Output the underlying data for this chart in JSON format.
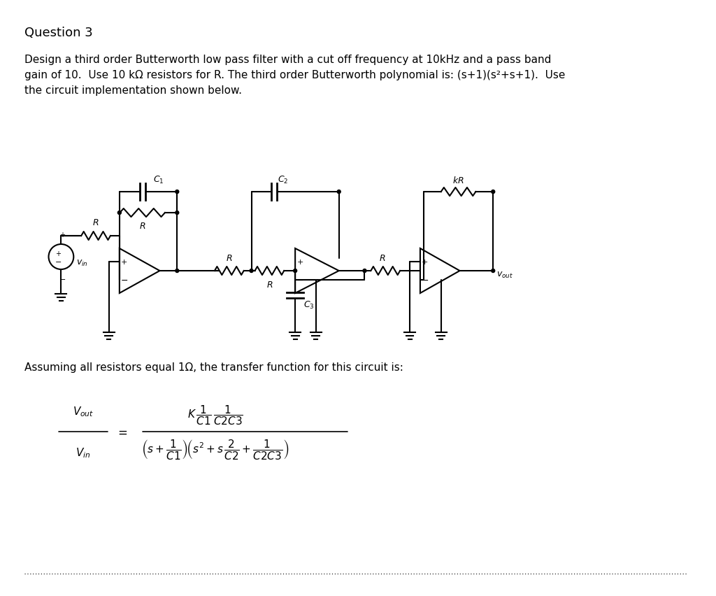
{
  "title": "Question 3",
  "paragraph": "Design a third order Butterworth low pass filter with a cut off frequency at 10kHz and a pass band\ngain of 10.  Use 10 kΩ resistors for R. The third order Butterworth polynomial is: (s+1)(s²+s+1).  Use\nthe circuit implementation shown below.",
  "assumption_text": "Assuming all resistors equal 1Ω, the transfer function for this circuit is:",
  "bg_color": "#ffffff",
  "text_color": "#000000",
  "font_size_title": 13,
  "font_size_body": 12,
  "font_size_circuit": 11
}
